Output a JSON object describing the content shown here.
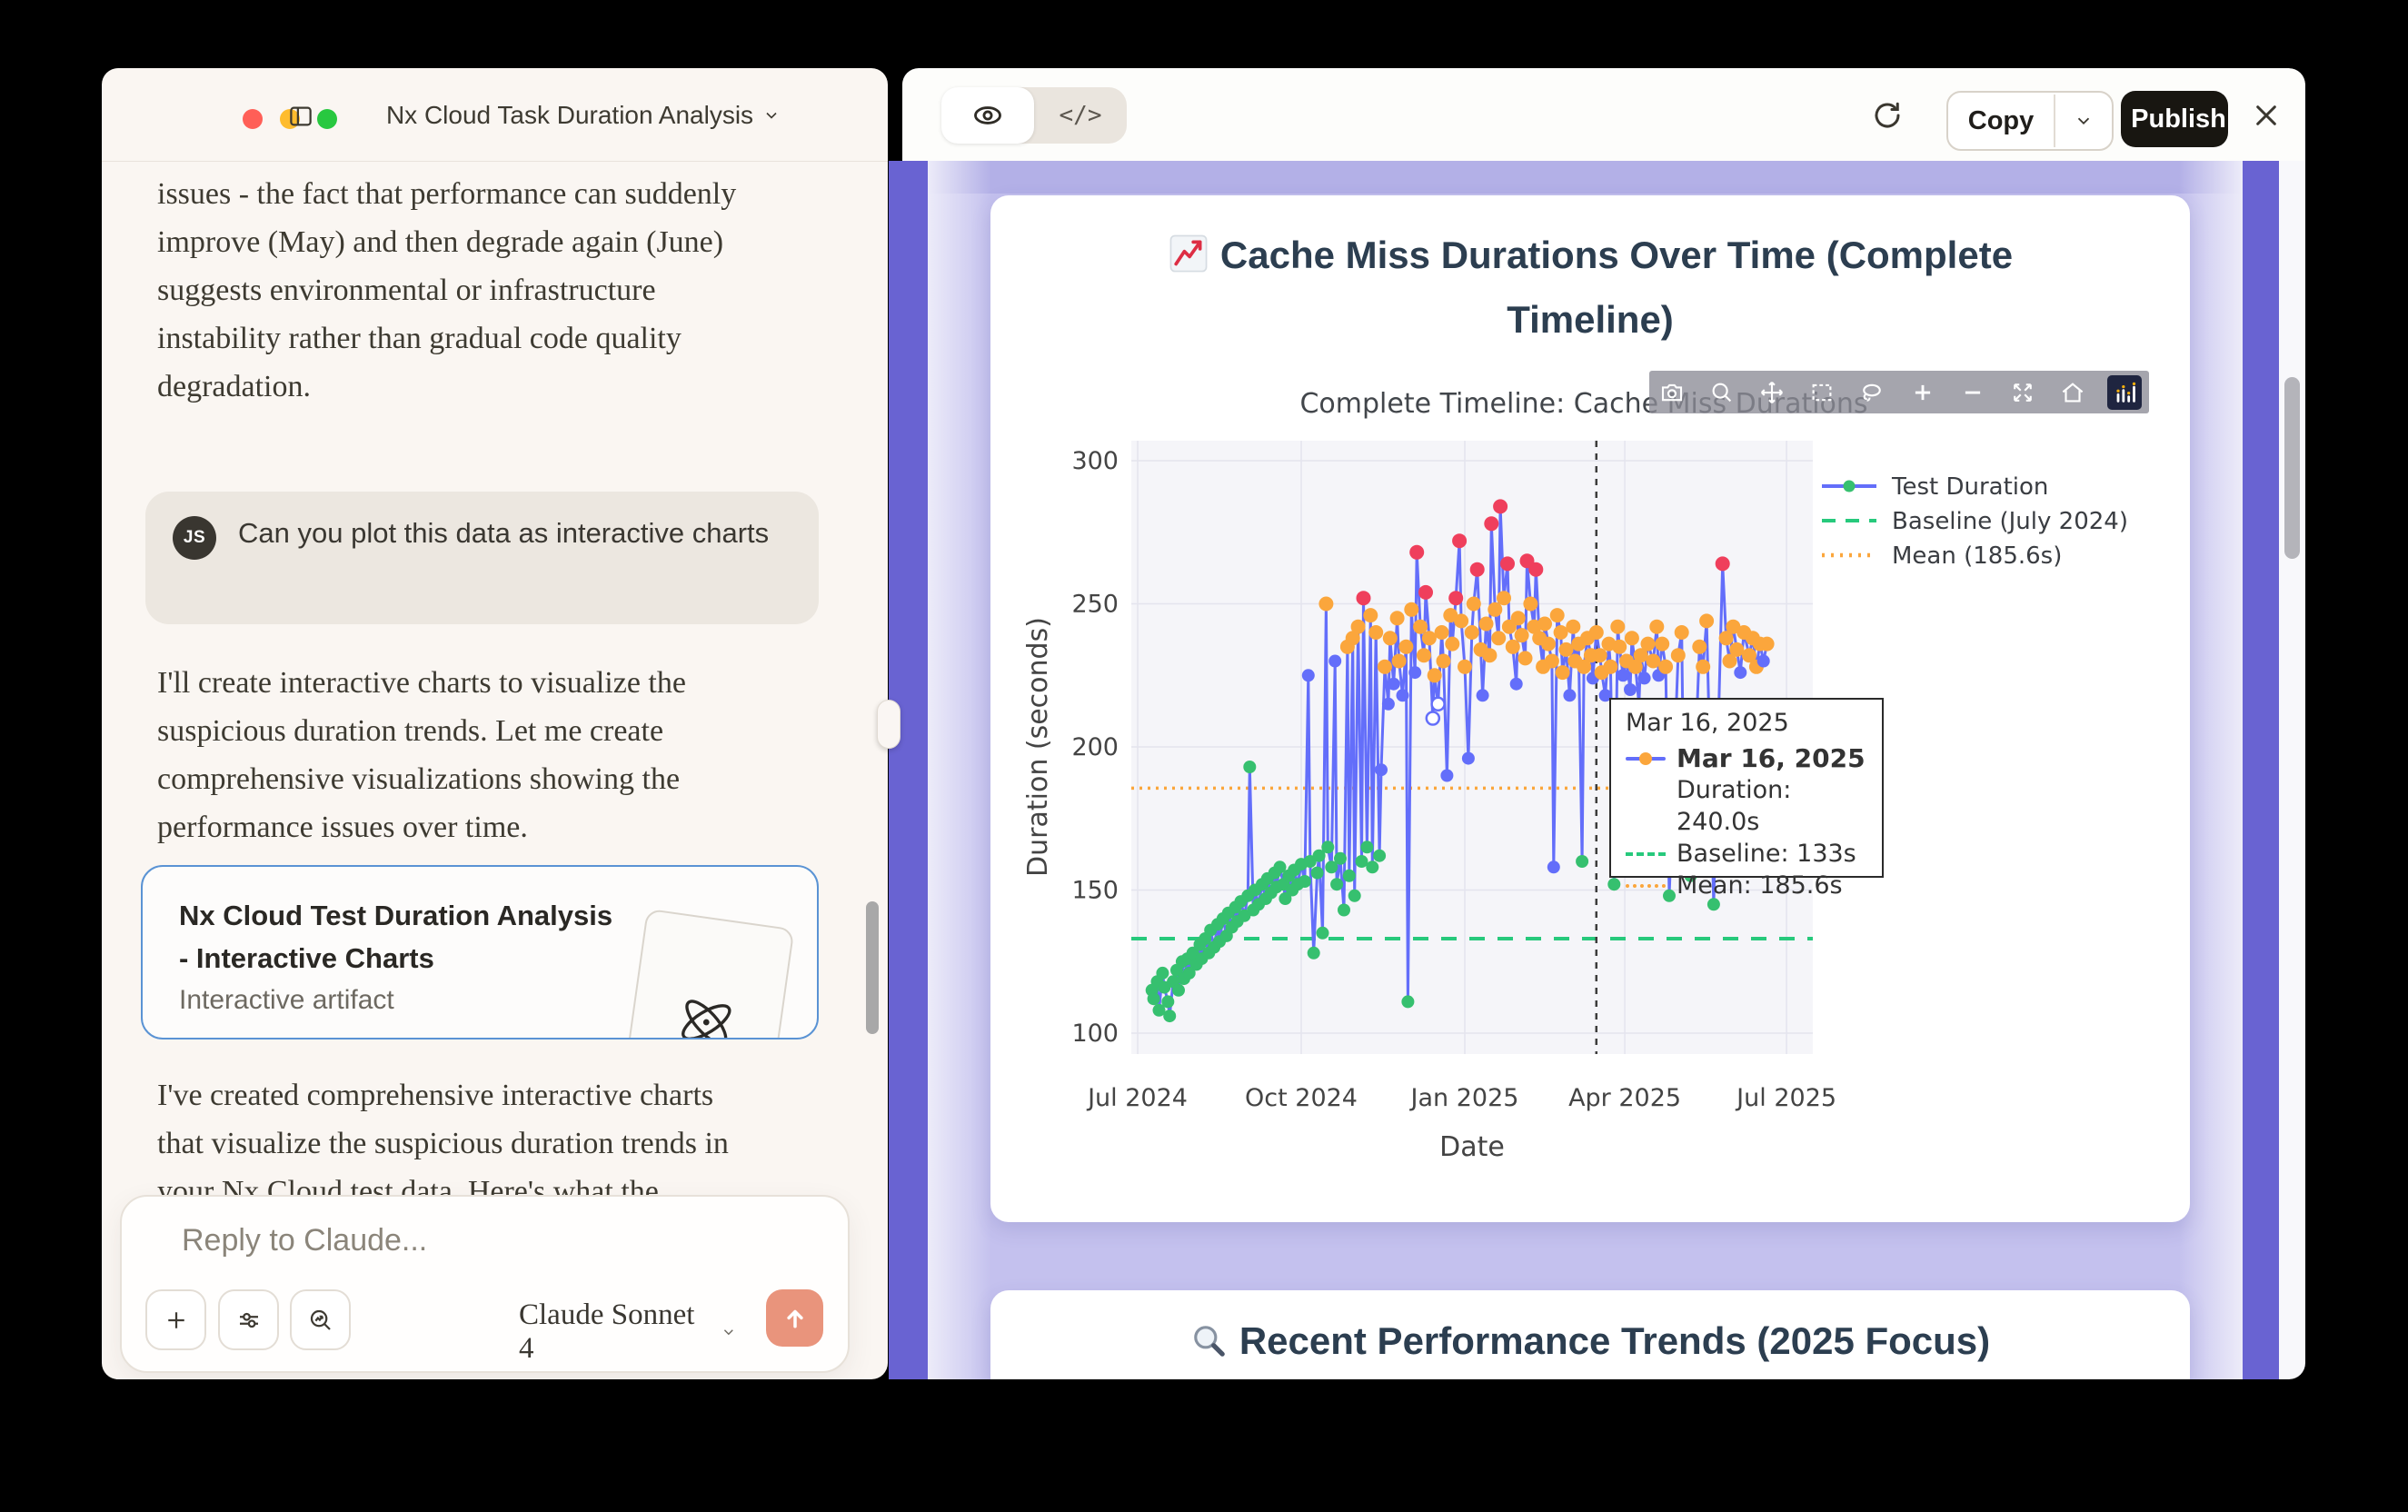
{
  "window": {
    "title": "Nx Cloud Task Duration Analysis"
  },
  "chat": {
    "p1": "issues - the fact that performance can suddenly improve (May) and then degrade again (June) suggests environmental or infrastructure instability rather than gradual code quality degradation.",
    "user_message": {
      "avatar_initials": "JS",
      "text": "Can you plot this data as interactive charts"
    },
    "p2": "I'll create interactive charts to visualize the suspicious duration trends. Let me create comprehensive visualizations showing the performance issues over time.",
    "artifact_card": {
      "title": "Nx Cloud Test Duration Analysis - Interactive Charts",
      "subtitle": "Interactive artifact",
      "icon": "atom-icon"
    },
    "p3": "I've created comprehensive interactive charts that visualize the suspicious duration trends in your Nx Cloud test data. Here's what the",
    "composer": {
      "placeholder": "Reply to Claude...",
      "model": "Claude Sonnet 4"
    }
  },
  "artifact": {
    "toolbar": {
      "preview_icon": "eye-icon",
      "code_label": "</>",
      "copy_label": "Copy",
      "publish_label": "Publish"
    },
    "modebar_icons": [
      "camera",
      "zoom",
      "pan",
      "box-select",
      "lasso",
      "zoom-in",
      "zoom-out",
      "autoscale",
      "reset-axes",
      "plotly-logo"
    ],
    "card1": {
      "icon": "chart-increasing-emoji",
      "title": "Cache Miss Durations Over Time (Complete Timeline)"
    },
    "card2": {
      "icon": "magnifier-emoji",
      "title": "Recent Performance Trends (2025 Focus)"
    }
  },
  "colors": {
    "accent_salmon": "#E9947C",
    "purple_strip": "#6963D2",
    "panel_periwinkle": "#C4C1EE",
    "artifact_border_blue": "#5A93D4",
    "heading_navy": "#2C3E50"
  },
  "chart_data": {
    "type": "scatter",
    "title": "Complete Timeline: Cache Miss Durations",
    "xlabel": "Date",
    "ylabel": "Duration (seconds)",
    "x_ticks": [
      "Jul 2024",
      "Oct 2024",
      "Jan 2025",
      "Apr 2025",
      "Jul 2025"
    ],
    "x_tick_days": [
      0,
      92,
      184,
      274,
      365
    ],
    "y_ticks": [
      100,
      150,
      200,
      250,
      300
    ],
    "ylim": [
      93,
      307
    ],
    "grid": true,
    "legend_position": "top-right",
    "legend": [
      "Test Duration",
      "Baseline (July 2024)",
      "Mean (185.6s)"
    ],
    "baseline_value": 133,
    "mean_value": 185.6,
    "spike_day": 258,
    "colors": {
      "line": "#636EFA",
      "green": "#36C06F",
      "blue": "#636EFA",
      "orange": "#FBA63C",
      "red": "#EF3F5C",
      "white": "#FFFFFF",
      "baseline": "#27C97C",
      "mean": "#FBA63C",
      "spike": "#3C3C3C"
    },
    "tooltip": {
      "header": "Mar 16, 2025",
      "bold_date": "Mar 16, 2025",
      "duration": "Duration: 240.0s",
      "baseline": "Baseline: 133s",
      "mean": "Mean: 185.6s"
    },
    "points": [
      [
        8,
        115,
        "g"
      ],
      [
        9,
        112,
        "g"
      ],
      [
        11,
        118,
        "g"
      ],
      [
        12,
        108,
        "g"
      ],
      [
        14,
        121,
        "g"
      ],
      [
        15,
        116,
        "g"
      ],
      [
        17,
        111,
        "g"
      ],
      [
        18,
        106,
        "g"
      ],
      [
        20,
        118,
        "g"
      ],
      [
        22,
        122,
        "g"
      ],
      [
        23,
        115,
        "g"
      ],
      [
        25,
        125,
        "g"
      ],
      [
        26,
        119,
        "g"
      ],
      [
        28,
        126,
        "g"
      ],
      [
        29,
        121,
        "g"
      ],
      [
        31,
        128,
        "g"
      ],
      [
        33,
        124,
        "g"
      ],
      [
        35,
        131,
        "g"
      ],
      [
        36,
        126,
        "g"
      ],
      [
        38,
        133,
        "g"
      ],
      [
        40,
        128,
        "g"
      ],
      [
        41,
        136,
        "g"
      ],
      [
        43,
        130,
        "g"
      ],
      [
        45,
        138,
        "g"
      ],
      [
        46,
        132,
        "g"
      ],
      [
        48,
        140,
        "g"
      ],
      [
        50,
        134,
        "g"
      ],
      [
        51,
        142,
        "g"
      ],
      [
        53,
        137,
        "g"
      ],
      [
        55,
        144,
        "g"
      ],
      [
        56,
        139,
        "g"
      ],
      [
        58,
        146,
        "g"
      ],
      [
        60,
        141,
        "g"
      ],
      [
        62,
        148,
        "g"
      ],
      [
        63,
        193,
        "g"
      ],
      [
        65,
        143,
        "g"
      ],
      [
        66,
        150,
        "g"
      ],
      [
        68,
        145,
        "g"
      ],
      [
        70,
        152,
        "g"
      ],
      [
        72,
        147,
        "g"
      ],
      [
        73,
        154,
        "g"
      ],
      [
        75,
        149,
        "g"
      ],
      [
        77,
        156,
        "g"
      ],
      [
        78,
        151,
        "g"
      ],
      [
        80,
        158,
        "g"
      ],
      [
        82,
        152,
        "g"
      ],
      [
        83,
        147,
        "g"
      ],
      [
        85,
        155,
        "g"
      ],
      [
        87,
        150,
        "g"
      ],
      [
        88,
        157,
        "g"
      ],
      [
        90,
        152,
        "g"
      ],
      [
        92,
        159,
        "g"
      ],
      [
        94,
        153,
        "g"
      ],
      [
        96,
        225,
        "b"
      ],
      [
        97,
        160,
        "g"
      ],
      [
        99,
        128,
        "g"
      ],
      [
        101,
        156,
        "g"
      ],
      [
        102,
        162,
        "g"
      ],
      [
        104,
        135,
        "g"
      ],
      [
        106,
        250,
        "o"
      ],
      [
        107,
        165,
        "g"
      ],
      [
        109,
        158,
        "g"
      ],
      [
        111,
        230,
        "b"
      ],
      [
        112,
        152,
        "g"
      ],
      [
        114,
        161,
        "g"
      ],
      [
        116,
        143,
        "g"
      ],
      [
        118,
        235,
        "o"
      ],
      [
        119,
        155,
        "g"
      ],
      [
        121,
        238,
        "o"
      ],
      [
        122,
        148,
        "g"
      ],
      [
        124,
        242,
        "o"
      ],
      [
        126,
        160,
        "g"
      ],
      [
        127,
        252,
        "r"
      ],
      [
        129,
        165,
        "g"
      ],
      [
        131,
        246,
        "o"
      ],
      [
        132,
        158,
        "g"
      ],
      [
        134,
        240,
        "o"
      ],
      [
        136,
        162,
        "g"
      ],
      [
        137,
        192,
        "b"
      ],
      [
        139,
        228,
        "o"
      ],
      [
        141,
        215,
        "b"
      ],
      [
        142,
        238,
        "o"
      ],
      [
        144,
        222,
        "b"
      ],
      [
        146,
        245,
        "o"
      ],
      [
        147,
        230,
        "o"
      ],
      [
        149,
        218,
        "b"
      ],
      [
        151,
        235,
        "o"
      ],
      [
        152,
        111,
        "g"
      ],
      [
        154,
        248,
        "o"
      ],
      [
        156,
        226,
        "b"
      ],
      [
        157,
        268,
        "r"
      ],
      [
        159,
        242,
        "o"
      ],
      [
        161,
        232,
        "o"
      ],
      [
        162,
        254,
        "r"
      ],
      [
        164,
        238,
        "o"
      ],
      [
        166,
        210,
        "w"
      ],
      [
        167,
        225,
        "o"
      ],
      [
        169,
        215,
        "w"
      ],
      [
        171,
        240,
        "o"
      ],
      [
        172,
        230,
        "o"
      ],
      [
        174,
        190,
        "b"
      ],
      [
        176,
        246,
        "o"
      ],
      [
        177,
        236,
        "o"
      ],
      [
        179,
        252,
        "r"
      ],
      [
        181,
        272,
        "r"
      ],
      [
        182,
        244,
        "o"
      ],
      [
        184,
        228,
        "o"
      ],
      [
        186,
        196,
        "b"
      ],
      [
        188,
        240,
        "o"
      ],
      [
        189,
        250,
        "o"
      ],
      [
        191,
        262,
        "r"
      ],
      [
        193,
        234,
        "o"
      ],
      [
        194,
        218,
        "b"
      ],
      [
        196,
        243,
        "o"
      ],
      [
        198,
        232,
        "o"
      ],
      [
        199,
        278,
        "r"
      ],
      [
        201,
        248,
        "o"
      ],
      [
        203,
        238,
        "o"
      ],
      [
        204,
        284,
        "r"
      ],
      [
        206,
        252,
        "o"
      ],
      [
        208,
        264,
        "r"
      ],
      [
        209,
        242,
        "o"
      ],
      [
        211,
        235,
        "o"
      ],
      [
        213,
        222,
        "b"
      ],
      [
        214,
        245,
        "o"
      ],
      [
        216,
        239,
        "o"
      ],
      [
        218,
        231,
        "o"
      ],
      [
        219,
        265,
        "r"
      ],
      [
        221,
        250,
        "o"
      ],
      [
        223,
        242,
        "o"
      ],
      [
        224,
        262,
        "r"
      ],
      [
        226,
        238,
        "o"
      ],
      [
        228,
        228,
        "o"
      ],
      [
        229,
        243,
        "o"
      ],
      [
        231,
        236,
        "o"
      ],
      [
        233,
        230,
        "o"
      ],
      [
        234,
        158,
        "b"
      ],
      [
        236,
        246,
        "o"
      ],
      [
        238,
        240,
        "o"
      ],
      [
        239,
        226,
        "o"
      ],
      [
        241,
        234,
        "o"
      ],
      [
        243,
        218,
        "b"
      ],
      [
        245,
        242,
        "o"
      ],
      [
        246,
        230,
        "o"
      ],
      [
        248,
        236,
        "o"
      ],
      [
        250,
        160,
        "g"
      ],
      [
        251,
        228,
        "o"
      ],
      [
        253,
        238,
        "o"
      ],
      [
        255,
        232,
        "o"
      ],
      [
        256,
        224,
        "b"
      ],
      [
        258,
        240,
        "o"
      ],
      [
        260,
        232,
        "o"
      ],
      [
        261,
        226,
        "o"
      ],
      [
        263,
        218,
        "b"
      ],
      [
        265,
        236,
        "o"
      ],
      [
        266,
        228,
        "o"
      ],
      [
        268,
        152,
        "g"
      ],
      [
        270,
        242,
        "o"
      ],
      [
        271,
        235,
        "o"
      ],
      [
        273,
        225,
        "b"
      ],
      [
        275,
        230,
        "o"
      ],
      [
        277,
        220,
        "b"
      ],
      [
        278,
        238,
        "o"
      ],
      [
        280,
        228,
        "o"
      ],
      [
        282,
        215,
        "b"
      ],
      [
        283,
        232,
        "o"
      ],
      [
        285,
        224,
        "b"
      ],
      [
        287,
        236,
        "o"
      ],
      [
        290,
        230,
        "o"
      ],
      [
        292,
        242,
        "o"
      ],
      [
        293,
        225,
        "b"
      ],
      [
        295,
        236,
        "o"
      ],
      [
        297,
        228,
        "o"
      ],
      [
        299,
        148,
        "g"
      ],
      [
        304,
        232,
        "o"
      ],
      [
        306,
        240,
        "o"
      ],
      [
        307,
        190,
        "b"
      ],
      [
        311,
        155,
        "g"
      ],
      [
        316,
        235,
        "o"
      ],
      [
        318,
        228,
        "o"
      ],
      [
        320,
        244,
        "o"
      ],
      [
        324,
        145,
        "g"
      ],
      [
        329,
        264,
        "r"
      ],
      [
        331,
        238,
        "o"
      ],
      [
        333,
        230,
        "o"
      ],
      [
        335,
        242,
        "o"
      ],
      [
        337,
        234,
        "o"
      ],
      [
        339,
        226,
        "b"
      ],
      [
        341,
        240,
        "o"
      ],
      [
        344,
        232,
        "o"
      ],
      [
        346,
        238,
        "o"
      ],
      [
        348,
        228,
        "o"
      ],
      [
        350,
        236,
        "o"
      ],
      [
        352,
        230,
        "b"
      ],
      [
        354,
        236,
        "o"
      ]
    ]
  }
}
